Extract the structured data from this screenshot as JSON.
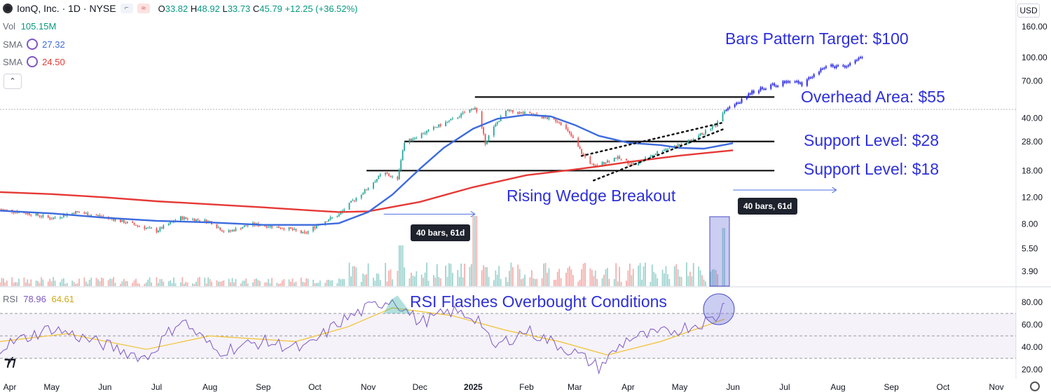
{
  "header": {
    "symbol": "IonQ, Inc. · 1D · NYSE",
    "open_label": "O",
    "open": "33.82",
    "high_label": "H",
    "high": "48.92",
    "low_label": "L",
    "low": "33.73",
    "close_label": "C",
    "close": "45.79",
    "change": "+12.25 (+36.52%)",
    "currency": "USD"
  },
  "indicators": {
    "vol_label": "Vol",
    "vol_value": "105.15M",
    "sma1_label": "SMA",
    "sma1_value": "27.32",
    "sma2_label": "SMA",
    "sma2_value": "24.50",
    "rsi_label": "RSI",
    "rsi_value": "78.96",
    "rsi_ma_value": "64.61"
  },
  "colors": {
    "up": "#26a69a",
    "down": "#ef5350",
    "projection": "#2b2bdc",
    "sma_fast": "#3d6bde",
    "sma_slow": "#e53935",
    "rsi": "#7e57c2",
    "rsi_ma": "#f2c230",
    "annotation_text": "#2e30d9",
    "measure_arrow": "#4f6fe0"
  },
  "annotations": {
    "target": "Bars Pattern Target: $100",
    "overhead": "Overhead Area: $55",
    "support1": "Support Level: $28",
    "support2": "Support Level: $18",
    "wedge": "Rising Wedge Breakout",
    "rsi": "RSI Flashes Overbought Conditions",
    "bars_chip_1": "40 bars, 61d",
    "bars_chip_2": "40 bars, 61d"
  },
  "chart_data": {
    "type": "candlestick",
    "scale": "log",
    "price_ticks": [
      "160.00",
      "100.00",
      "70.00",
      "40.00",
      "28.00",
      "18.00",
      "12.00",
      "8.00",
      "5.50",
      "3.90"
    ],
    "rsi_ticks": [
      "80.00",
      "60.00",
      "40.00",
      "20.00"
    ],
    "x_labels": [
      "Apr",
      "May",
      "Jun",
      "Jul",
      "Aug",
      "Sep",
      "Oct",
      "Nov",
      "Dec",
      "2025",
      "Feb",
      "Mar",
      "Apr",
      "May",
      "Jun",
      "Jul",
      "Aug",
      "Sep",
      "Oct",
      "Nov"
    ],
    "x_label_bold": "2025",
    "horizontal_levels": [
      {
        "name": "overhead",
        "price": 55,
        "from": "2025-01-02",
        "to": "2025-06-25"
      },
      {
        "name": "support-28",
        "price": 28,
        "from": "2024-11-22",
        "to": "2025-06-25"
      },
      {
        "name": "support-18",
        "price": 18,
        "from": "2024-10-31",
        "to": "2025-06-25"
      }
    ],
    "sma_fast": [
      {
        "d": "2024-04-01",
        "v": 9.8
      },
      {
        "d": "2024-05-01",
        "v": 9.4
      },
      {
        "d": "2024-06-01",
        "v": 8.8
      },
      {
        "d": "2024-07-01",
        "v": 8.4
      },
      {
        "d": "2024-08-01",
        "v": 8.2
      },
      {
        "d": "2024-09-01",
        "v": 7.9
      },
      {
        "d": "2024-10-01",
        "v": 7.9
      },
      {
        "d": "2024-10-15",
        "v": 8.1
      },
      {
        "d": "2024-11-01",
        "v": 9.6
      },
      {
        "d": "2024-11-15",
        "v": 12.5
      },
      {
        "d": "2024-12-01",
        "v": 18.5
      },
      {
        "d": "2024-12-15",
        "v": 25.5
      },
      {
        "d": "2025-01-01",
        "v": 34.0
      },
      {
        "d": "2025-01-15",
        "v": 39.5
      },
      {
        "d": "2025-02-01",
        "v": 42.0
      },
      {
        "d": "2025-02-15",
        "v": 41.0
      },
      {
        "d": "2025-03-01",
        "v": 36.0
      },
      {
        "d": "2025-03-15",
        "v": 30.5
      },
      {
        "d": "2025-04-01",
        "v": 27.5
      },
      {
        "d": "2025-04-20",
        "v": 26.5
      },
      {
        "d": "2025-05-01",
        "v": 25.4
      },
      {
        "d": "2025-05-15",
        "v": 25.1
      },
      {
        "d": "2025-06-01",
        "v": 27.3
      }
    ],
    "sma_slow": [
      {
        "d": "2024-04-01",
        "v": 13.0
      },
      {
        "d": "2024-05-01",
        "v": 12.6
      },
      {
        "d": "2024-06-01",
        "v": 12.0
      },
      {
        "d": "2024-07-01",
        "v": 11.3
      },
      {
        "d": "2024-08-01",
        "v": 10.8
      },
      {
        "d": "2024-09-01",
        "v": 10.3
      },
      {
        "d": "2024-10-01",
        "v": 9.8
      },
      {
        "d": "2024-10-15",
        "v": 9.6
      },
      {
        "d": "2024-11-01",
        "v": 9.7
      },
      {
        "d": "2024-12-01",
        "v": 11.2
      },
      {
        "d": "2025-01-01",
        "v": 14.0
      },
      {
        "d": "2025-02-01",
        "v": 16.8
      },
      {
        "d": "2025-03-01",
        "v": 18.3
      },
      {
        "d": "2025-03-15",
        "v": 19.2
      },
      {
        "d": "2025-04-01",
        "v": 20.5
      },
      {
        "d": "2025-05-01",
        "v": 22.6
      },
      {
        "d": "2025-06-01",
        "v": 24.5
      }
    ],
    "price_path": [
      {
        "d": "2024-04-01",
        "v": 10.0
      },
      {
        "d": "2024-04-20",
        "v": 9.3
      },
      {
        "d": "2024-05-01",
        "v": 8.7
      },
      {
        "d": "2024-05-15",
        "v": 9.6
      },
      {
        "d": "2024-06-01",
        "v": 8.9
      },
      {
        "d": "2024-06-20",
        "v": 7.8
      },
      {
        "d": "2024-07-01",
        "v": 7.2
      },
      {
        "d": "2024-07-15",
        "v": 8.8
      },
      {
        "d": "2024-08-01",
        "v": 8.3
      },
      {
        "d": "2024-08-10",
        "v": 7.0
      },
      {
        "d": "2024-08-25",
        "v": 8.0
      },
      {
        "d": "2024-09-15",
        "v": 7.5
      },
      {
        "d": "2024-09-25",
        "v": 6.9
      },
      {
        "d": "2024-10-05",
        "v": 8.2
      },
      {
        "d": "2024-10-15",
        "v": 9.2
      },
      {
        "d": "2024-10-31",
        "v": 13.5
      },
      {
        "d": "2024-11-10",
        "v": 17.5
      },
      {
        "d": "2024-11-18",
        "v": 15.5
      },
      {
        "d": "2024-11-22",
        "v": 27.5
      },
      {
        "d": "2024-12-05",
        "v": 32.5
      },
      {
        "d": "2024-12-20",
        "v": 39.0
      },
      {
        "d": "2025-01-02",
        "v": 47.0
      },
      {
        "d": "2025-01-08",
        "v": 27.5
      },
      {
        "d": "2025-01-20",
        "v": 44.5
      },
      {
        "d": "2025-02-05",
        "v": 42.0
      },
      {
        "d": "2025-02-20",
        "v": 38.0
      },
      {
        "d": "2025-03-05",
        "v": 23.5
      },
      {
        "d": "2025-03-12",
        "v": 19.0
      },
      {
        "d": "2025-03-25",
        "v": 22.0
      },
      {
        "d": "2025-04-05",
        "v": 19.5
      },
      {
        "d": "2025-04-20",
        "v": 24.5
      },
      {
        "d": "2025-05-05",
        "v": 27.5
      },
      {
        "d": "2025-05-15",
        "v": 32.0
      },
      {
        "d": "2025-05-22",
        "v": 36.0
      },
      {
        "d": "2025-05-27",
        "v": 45.8
      }
    ],
    "projection_path": [
      {
        "d": "2025-05-27",
        "v": 45.0
      },
      {
        "d": "2025-06-05",
        "v": 52.0
      },
      {
        "d": "2025-06-15",
        "v": 62.0
      },
      {
        "d": "2025-06-25",
        "v": 66.0
      },
      {
        "d": "2025-07-05",
        "v": 70.0
      },
      {
        "d": "2025-07-12",
        "v": 66.0
      },
      {
        "d": "2025-07-20",
        "v": 82.0
      },
      {
        "d": "2025-07-28",
        "v": 88.0
      },
      {
        "d": "2025-08-05",
        "v": 86.0
      },
      {
        "d": "2025-08-15",
        "v": 101.0
      }
    ],
    "wedge_lines": [
      {
        "name": "wedge-upper",
        "from": {
          "d": "2025-03-05",
          "v": 22.5
        },
        "to": {
          "d": "2025-05-27",
          "v": 37.5
        }
      },
      {
        "name": "wedge-lower",
        "from": {
          "d": "2025-03-12",
          "v": 15.5
        },
        "to": {
          "d": "2025-05-27",
          "v": 34.0
        }
      }
    ],
    "measure_arrows": [
      {
        "from": "2024-11-10",
        "to": "2025-01-02",
        "price": 9.3
      },
      {
        "from": "2025-06-01",
        "to": "2025-07-31",
        "price": 13.4
      }
    ],
    "volume_spikes": [
      {
        "d": "2024-11-20",
        "level": 0.58
      },
      {
        "d": "2025-01-02",
        "level": 1.0
      },
      {
        "d": "2025-05-27",
        "level": 0.83
      }
    ],
    "rsi": [
      {
        "d": "2024-04-01",
        "v": 40
      },
      {
        "d": "2024-05-01",
        "v": 57
      },
      {
        "d": "2024-06-01",
        "v": 42
      },
      {
        "d": "2024-06-25",
        "v": 30
      },
      {
        "d": "2024-07-15",
        "v": 65
      },
      {
        "d": "2024-08-05",
        "v": 36
      },
      {
        "d": "2024-09-01",
        "v": 45
      },
      {
        "d": "2024-09-25",
        "v": 38
      },
      {
        "d": "2024-10-15",
        "v": 62
      },
      {
        "d": "2024-11-01",
        "v": 75
      },
      {
        "d": "2024-11-15",
        "v": 83
      },
      {
        "d": "2024-12-01",
        "v": 62
      },
      {
        "d": "2024-12-20",
        "v": 72
      },
      {
        "d": "2025-01-05",
        "v": 65
      },
      {
        "d": "2025-01-12",
        "v": 39
      },
      {
        "d": "2025-02-01",
        "v": 55
      },
      {
        "d": "2025-03-01",
        "v": 35
      },
      {
        "d": "2025-03-15",
        "v": 22
      },
      {
        "d": "2025-04-01",
        "v": 48
      },
      {
        "d": "2025-04-20",
        "v": 52
      },
      {
        "d": "2025-05-10",
        "v": 60
      },
      {
        "d": "2025-05-22",
        "v": 66
      },
      {
        "d": "2025-05-27",
        "v": 79
      }
    ],
    "rsi_ma": [
      {
        "d": "2024-04-01",
        "v": 45
      },
      {
        "d": "2024-05-10",
        "v": 52
      },
      {
        "d": "2024-06-25",
        "v": 38
      },
      {
        "d": "2024-08-01",
        "v": 50
      },
      {
        "d": "2024-09-20",
        "v": 45
      },
      {
        "d": "2024-10-20",
        "v": 58
      },
      {
        "d": "2024-11-15",
        "v": 75
      },
      {
        "d": "2024-12-20",
        "v": 68
      },
      {
        "d": "2025-01-20",
        "v": 55
      },
      {
        "d": "2025-02-20",
        "v": 45
      },
      {
        "d": "2025-03-20",
        "v": 33
      },
      {
        "d": "2025-04-20",
        "v": 45
      },
      {
        "d": "2025-05-27",
        "v": 65
      }
    ],
    "rsi_bands": {
      "upper": 70,
      "middle": 50,
      "lower": 30
    }
  }
}
